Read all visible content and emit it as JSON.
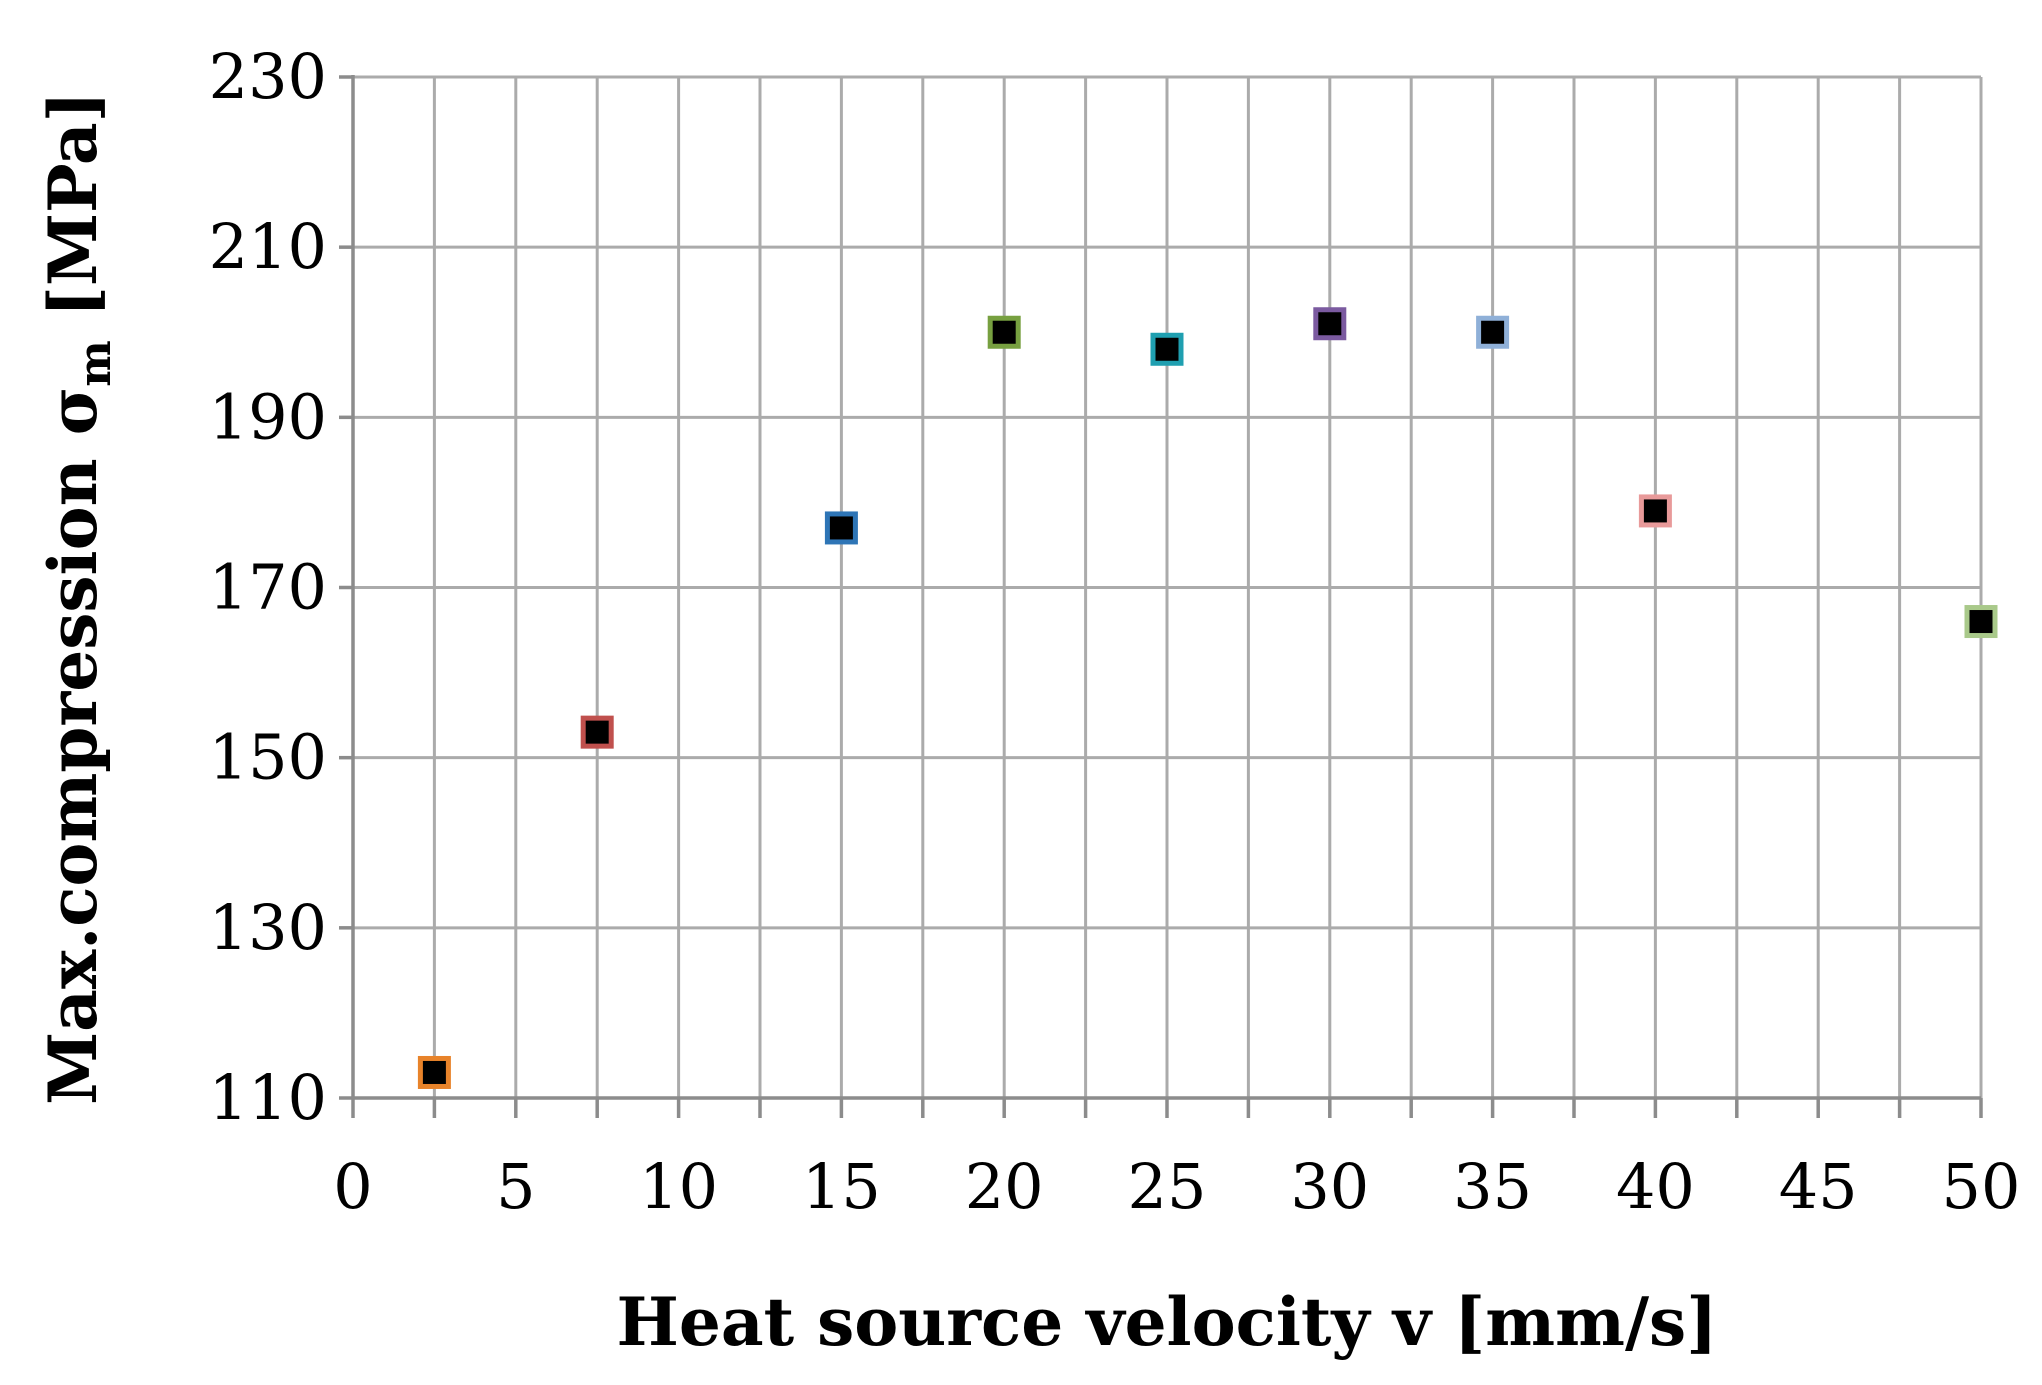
{
  "chart_data": {
    "type": "scatter",
    "title": "",
    "xlabel": "Heat source velocity v [mm/s]",
    "ylabel": {
      "main": "Max.compression σ",
      "subscript": "m",
      "unit": " [MPa]"
    },
    "xlim": [
      0,
      50
    ],
    "ylim": [
      110,
      230
    ],
    "x_ticks": [
      "0",
      "5",
      "10",
      "15",
      "20",
      "25",
      "30",
      "35",
      "40",
      "45",
      "50"
    ],
    "y_ticks": [
      "110",
      "130",
      "150",
      "170",
      "190",
      "210",
      "230"
    ],
    "grid": true,
    "points": [
      {
        "x": 2.5,
        "y": 113,
        "edge_color": "#e8832a"
      },
      {
        "x": 7.5,
        "y": 153,
        "edge_color": "#c0504d"
      },
      {
        "x": 15,
        "y": 177,
        "edge_color": "#2e75b6"
      },
      {
        "x": 20,
        "y": 200,
        "edge_color": "#77a040"
      },
      {
        "x": 25,
        "y": 198,
        "edge_color": "#1f9fb0"
      },
      {
        "x": 30,
        "y": 201,
        "edge_color": "#7b5aa0"
      },
      {
        "x": 35,
        "y": 200,
        "edge_color": "#8fb0d8"
      },
      {
        "x": 40,
        "y": 179,
        "edge_color": "#e89a9a"
      },
      {
        "x": 50,
        "y": 166,
        "edge_color": "#a9c98a"
      }
    ],
    "marker_fill": "#000000"
  }
}
